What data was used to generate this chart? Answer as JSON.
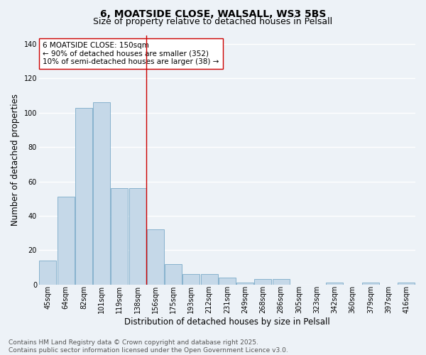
{
  "title1": "6, MOATSIDE CLOSE, WALSALL, WS3 5BS",
  "title2": "Size of property relative to detached houses in Pelsall",
  "categories": [
    "45sqm",
    "64sqm",
    "82sqm",
    "101sqm",
    "119sqm",
    "138sqm",
    "156sqm",
    "175sqm",
    "193sqm",
    "212sqm",
    "231sqm",
    "249sqm",
    "268sqm",
    "286sqm",
    "305sqm",
    "323sqm",
    "342sqm",
    "360sqm",
    "379sqm",
    "397sqm",
    "416sqm"
  ],
  "values": [
    14,
    51,
    103,
    106,
    56,
    56,
    32,
    12,
    6,
    6,
    4,
    1,
    3,
    3,
    0,
    0,
    1,
    0,
    1,
    0,
    1
  ],
  "bar_color": "#c5d8e8",
  "bar_edge_color": "#7aaac8",
  "xlabel": "Distribution of detached houses by size in Pelsall",
  "ylabel": "Number of detached properties",
  "ylim": [
    0,
    145
  ],
  "yticks": [
    0,
    20,
    40,
    60,
    80,
    100,
    120,
    140
  ],
  "vline_index": 6,
  "vline_color": "#cc0000",
  "annotation_text": "6 MOATSIDE CLOSE: 150sqm\n← 90% of detached houses are smaller (352)\n10% of semi-detached houses are larger (38) →",
  "annotation_box_color": "#ffffff",
  "annotation_box_edge": "#cc0000",
  "footer_text": "Contains HM Land Registry data © Crown copyright and database right 2025.\nContains public sector information licensed under the Open Government Licence v3.0.",
  "background_color": "#edf2f7",
  "grid_color": "#ffffff",
  "title_fontsize": 10,
  "subtitle_fontsize": 9,
  "axis_label_fontsize": 8.5,
  "tick_fontsize": 7,
  "annotation_fontsize": 7.5,
  "footer_fontsize": 6.5
}
